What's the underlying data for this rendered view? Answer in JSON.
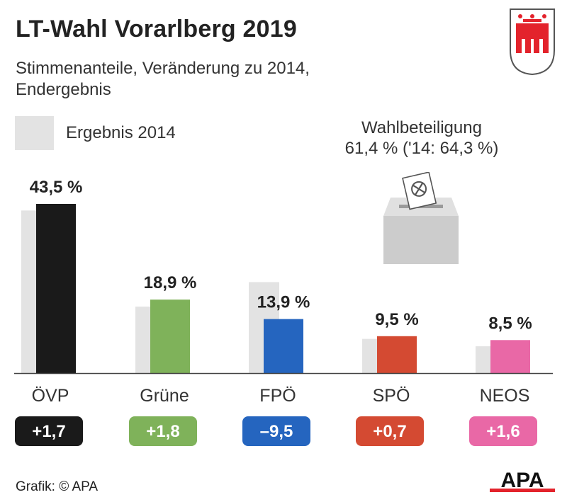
{
  "header": {
    "title": "LT-Wahl Vorarlberg 2019",
    "subtitle_line1": "Stimmenanteile, Veränderung zu 2014,",
    "subtitle_line2": "Endergebnis"
  },
  "legend": {
    "label": "Ergebnis 2014",
    "color": "#e3e3e3"
  },
  "turnout": {
    "label": "Wahlbeteiligung",
    "value": "61,4 % ('14: 64,3 %)"
  },
  "footer": {
    "credit": "Grafik: © APA",
    "logo_text": "APA"
  },
  "crest": {
    "name": "vorarlberg-coat-of-arms",
    "color": "#e3232c"
  },
  "chart_data": {
    "type": "bar",
    "categories": [
      "ÖVP",
      "Grüne",
      "FPÖ",
      "SPÖ",
      "NEOS"
    ],
    "values": [
      43.5,
      18.9,
      13.9,
      9.5,
      8.5
    ],
    "values_2014": [
      41.8,
      17.1,
      23.4,
      8.8,
      6.9
    ],
    "value_labels": [
      "43,5 %",
      "18,9 %",
      "13,9 %",
      "9,5 %",
      "8,5 %"
    ],
    "changes": [
      "+1,7",
      "+1,8",
      "–9,5",
      "+0,7",
      "+1,6"
    ],
    "colors": [
      "#1a1a1a",
      "#7fb25a",
      "#2565bf",
      "#d44a32",
      "#e968a6"
    ],
    "series": [
      {
        "name": "Ergebnis 2014",
        "values": [
          41.8,
          17.1,
          23.4,
          8.8,
          6.9
        ]
      },
      {
        "values": [
          43.5,
          18.9,
          13.9,
          9.5,
          8.5
        ]
      }
    ],
    "ylim": [
      0,
      45
    ],
    "grid": false,
    "legend_position": "top-left"
  }
}
